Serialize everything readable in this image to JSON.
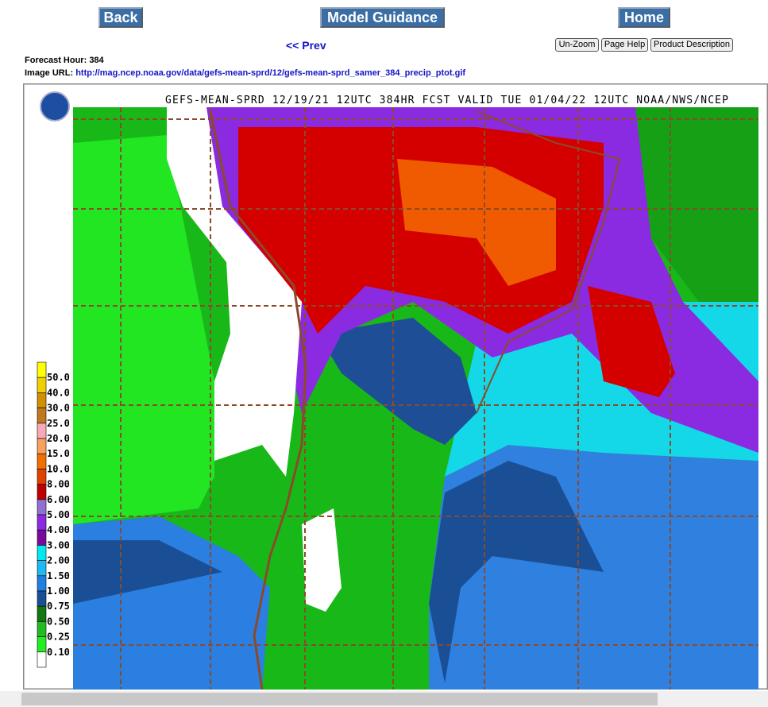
{
  "nav": {
    "back": "Back",
    "model_guidance": "Model Guidance",
    "home": "Home",
    "prev": "<< Prev"
  },
  "tools": [
    "Un-Zoom",
    "Page Help",
    "Product Description"
  ],
  "forecast_hour": {
    "label": "Forecast Hour:",
    "value": 384
  },
  "image_url": {
    "label": "Image URL:",
    "value": "http://mag.ncep.noaa.gov/data/gefs-mean-sprd/12/gefs-mean-sprd_samer_384_precip_ptot.gif"
  },
  "map": {
    "title": "GEFS-MEAN-SPRD 12/19/21 12UTC 384HR FCST VALID TUE 01/04/22 12UTC NOAA/NWS/NCEP",
    "legend": {
      "labels": [
        "50.0",
        "40.0",
        "30.0",
        "25.0",
        "20.0",
        "15.0",
        "10.0",
        "8.00",
        "6.00",
        "5.00",
        "4.00",
        "3.00",
        "2.00",
        "1.50",
        "1.00",
        "0.75",
        "0.50",
        "0.25",
        "0.10"
      ],
      "colors": [
        "#ffff00",
        "#f0d000",
        "#d09000",
        "#c07820",
        "#f8a8b8",
        "#f8a060",
        "#f07000",
        "#e04000",
        "#c00000",
        "#9070d0",
        "#8a2be2",
        "#7a0a9a",
        "#00e8f0",
        "#20b8f0",
        "#2080e0",
        "#1a4f96",
        "#117711",
        "#22bb22",
        "#22ee22",
        "#ffffff"
      ]
    }
  }
}
